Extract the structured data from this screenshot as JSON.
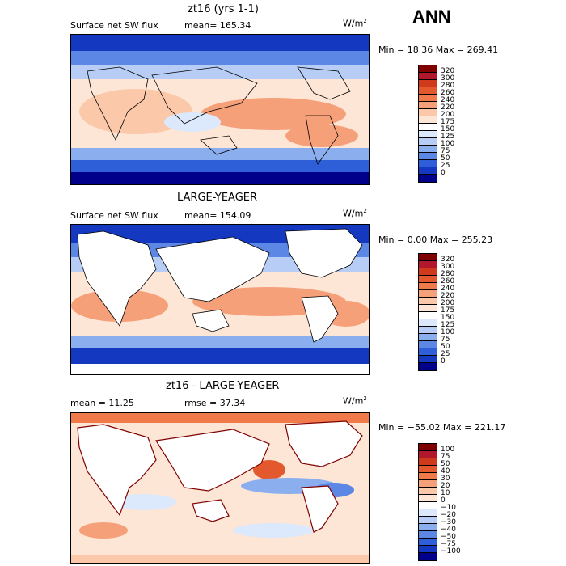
{
  "header": {
    "season": "ANN"
  },
  "panels": [
    {
      "title": "zt16 (yrs 1-1)",
      "left_label": "Surface net SW flux",
      "stat_label": "mean= 165.34",
      "units": "W/m",
      "units_exp": "2",
      "minmax": "Min =   18.36 Max =  269.41",
      "colorbar": {
        "levels": [
          "320",
          "300",
          "280",
          "260",
          "240",
          "220",
          "200",
          "175",
          "150",
          "125",
          "100",
          "75",
          "50",
          "25",
          "0"
        ],
        "colors": [
          "#7f0000",
          "#b2182b",
          "#cf3a1c",
          "#e4582e",
          "#f07a4a",
          "#f6a07a",
          "#fbc8aa",
          "#fde6d6",
          "#ffffff",
          "#dce8fb",
          "#b7cdf5",
          "#8aaeee",
          "#5c87e4",
          "#2e5fd8",
          "#1438c0",
          "#00008b"
        ]
      },
      "chart_data": {
        "type": "heatmap",
        "title": "zt16 (yrs 1-1)",
        "variable": "Surface net SW flux",
        "units": "W/m^2",
        "mean": 165.34,
        "min": 18.36,
        "max": 269.41,
        "contour_levels": [
          0,
          25,
          50,
          75,
          100,
          125,
          150,
          175,
          200,
          220,
          240,
          260,
          280,
          300,
          320
        ]
      }
    },
    {
      "title": "LARGE-YEAGER",
      "left_label": "Surface net SW flux",
      "stat_label": "mean= 154.09",
      "units": "W/m",
      "units_exp": "2",
      "minmax": "Min =    0.00 Max =  255.23",
      "colorbar": {
        "levels": [
          "320",
          "300",
          "280",
          "260",
          "240",
          "220",
          "200",
          "175",
          "150",
          "125",
          "100",
          "75",
          "50",
          "25",
          "0"
        ],
        "colors": [
          "#7f0000",
          "#b2182b",
          "#cf3a1c",
          "#e4582e",
          "#f07a4a",
          "#f6a07a",
          "#fbc8aa",
          "#fde6d6",
          "#ffffff",
          "#dce8fb",
          "#b7cdf5",
          "#8aaeee",
          "#5c87e4",
          "#2e5fd8",
          "#1438c0",
          "#00008b"
        ]
      },
      "chart_data": {
        "type": "heatmap",
        "title": "LARGE-YEAGER",
        "variable": "Surface net SW flux",
        "units": "W/m^2",
        "mean": 154.09,
        "min": 0.0,
        "max": 255.23,
        "contour_levels": [
          0,
          25,
          50,
          75,
          100,
          125,
          150,
          175,
          200,
          220,
          240,
          260,
          280,
          300,
          320
        ]
      }
    },
    {
      "title": "zt16 - LARGE-YEAGER",
      "left_label": "mean =   11.25",
      "stat_label": "rmse =  37.34",
      "units": "W/m",
      "units_exp": "2",
      "minmax": "Min = −55.02 Max =  221.17",
      "colorbar": {
        "levels": [
          "100",
          "75",
          "50",
          "40",
          "30",
          "20",
          "10",
          "0",
          "−10",
          "−20",
          "−30",
          "−40",
          "−50",
          "−75",
          "−100"
        ],
        "colors": [
          "#7f0000",
          "#b2182b",
          "#cf3a1c",
          "#e4582e",
          "#f07a4a",
          "#f6a07a",
          "#fbc8aa",
          "#fde6d6",
          "#ffffff",
          "#dce8fb",
          "#b7cdf5",
          "#8aaeee",
          "#5c87e4",
          "#2e5fd8",
          "#1438c0",
          "#00008b"
        ]
      },
      "chart_data": {
        "type": "heatmap",
        "title": "zt16 - LARGE-YEAGER",
        "units": "W/m^2",
        "mean": 11.25,
        "rmse": 37.34,
        "min": -55.02,
        "max": 221.17,
        "contour_levels": [
          -100,
          -75,
          -50,
          -40,
          -30,
          -20,
          -10,
          0,
          10,
          20,
          30,
          40,
          50,
          75,
          100
        ]
      }
    }
  ]
}
